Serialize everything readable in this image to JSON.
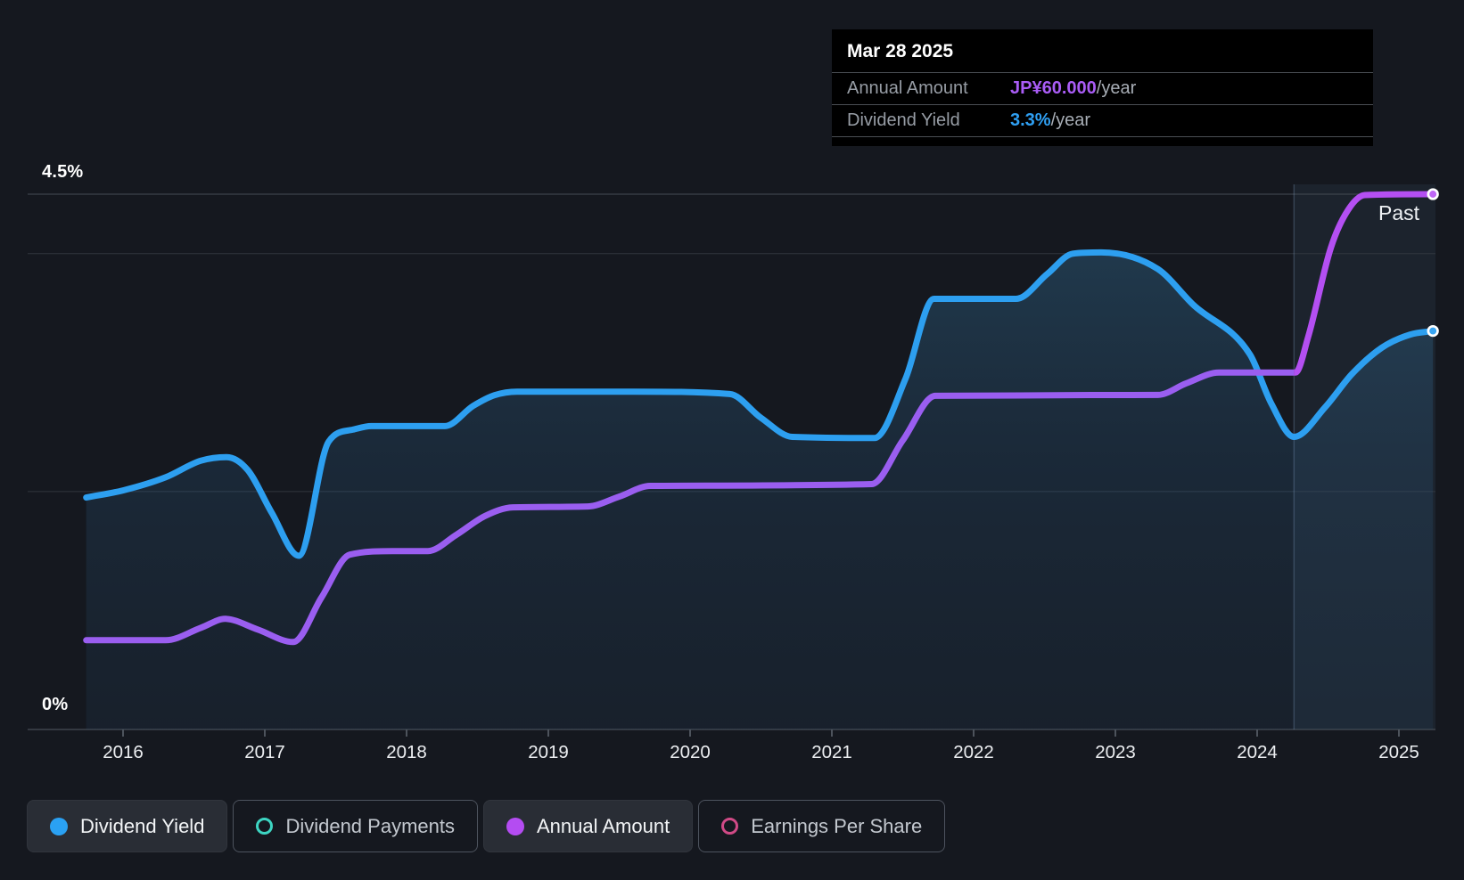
{
  "tooltip": {
    "date": "Mar 28 2025",
    "rows": [
      {
        "label": "Annual Amount",
        "value": "JP¥60.000",
        "suffix": "/year",
        "color": "#a95cf5"
      },
      {
        "label": "Dividend Yield",
        "value": "3.3%",
        "suffix": "/year",
        "color": "#2f9ff2"
      }
    ]
  },
  "legend": {
    "items": [
      {
        "label": "Dividend Yield",
        "color": "#2aa1f3",
        "style": "filled",
        "active": true
      },
      {
        "label": "Dividend Payments",
        "color": "#3dd5c2",
        "style": "outline",
        "active": false
      },
      {
        "label": "Annual Amount",
        "color": "#b44cf2",
        "style": "filled",
        "active": true
      },
      {
        "label": "Earnings Per Share",
        "color": "#d04a86",
        "style": "outline",
        "active": false
      }
    ]
  },
  "chart_data": {
    "type": "line",
    "annotations": {
      "past": "Past"
    },
    "x_axis": {
      "ticks": [
        2016,
        2017,
        2018,
        2019,
        2020,
        2021,
        2022,
        2023,
        2024,
        2025
      ]
    },
    "y_axis": {
      "unit": "%",
      "min": 0,
      "max": 4.5,
      "top_label": "4.5%",
      "bottom_label": "0%",
      "gridlines_pct": [
        4.5,
        4.0,
        2.0
      ]
    },
    "x_range": [
      2015.74,
      2025.24
    ],
    "past_divider_year": 2024.26,
    "colors": {
      "yield_line": "#2d9ff0",
      "amount_line": "#9a5ef0",
      "amount_line_past": "#b44ff2",
      "yield_dot": "#38a5f3",
      "amount_dot": "#bf66f6"
    },
    "series": [
      {
        "name": "Dividend Yield",
        "unit": "%",
        "points": [
          [
            2015.74,
            1.95
          ],
          [
            2016.0,
            2.01
          ],
          [
            2016.3,
            2.12
          ],
          [
            2016.55,
            2.26
          ],
          [
            2016.73,
            2.29
          ],
          [
            2016.88,
            2.18
          ],
          [
            2017.05,
            1.82
          ],
          [
            2017.24,
            1.46
          ],
          [
            2017.45,
            2.42
          ],
          [
            2017.62,
            2.52
          ],
          [
            2017.75,
            2.55
          ],
          [
            2018.27,
            2.55
          ],
          [
            2018.47,
            2.72
          ],
          [
            2018.62,
            2.81
          ],
          [
            2018.78,
            2.84
          ],
          [
            2019.6,
            2.84
          ],
          [
            2020.28,
            2.82
          ],
          [
            2020.5,
            2.62
          ],
          [
            2020.72,
            2.46
          ],
          [
            2021.3,
            2.45
          ],
          [
            2021.52,
            2.95
          ],
          [
            2021.72,
            3.62
          ],
          [
            2022.3,
            3.62
          ],
          [
            2022.52,
            3.83
          ],
          [
            2022.7,
            4.0
          ],
          [
            2022.9,
            4.01
          ],
          [
            2023.3,
            3.87
          ],
          [
            2023.55,
            3.57
          ],
          [
            2023.95,
            3.15
          ],
          [
            2024.1,
            2.74
          ],
          [
            2024.26,
            2.46
          ],
          [
            2024.48,
            2.71
          ],
          [
            2024.67,
            2.99
          ],
          [
            2024.88,
            3.21
          ],
          [
            2025.08,
            3.32
          ],
          [
            2025.24,
            3.35
          ]
        ]
      },
      {
        "name": "Annual Amount",
        "unit": "JP¥",
        "points": [
          [
            2015.74,
            10.0
          ],
          [
            2016.3,
            10.0
          ],
          [
            2016.55,
            11.4
          ],
          [
            2016.72,
            12.4
          ],
          [
            2016.95,
            11.2
          ],
          [
            2017.2,
            9.8
          ],
          [
            2017.4,
            14.8
          ],
          [
            2017.6,
            19.6
          ],
          [
            2017.9,
            20.0
          ],
          [
            2018.15,
            20.0
          ],
          [
            2018.35,
            21.8
          ],
          [
            2018.55,
            23.9
          ],
          [
            2018.75,
            24.9
          ],
          [
            2019.28,
            25.0
          ],
          [
            2019.5,
            26.1
          ],
          [
            2019.72,
            27.3
          ],
          [
            2021.28,
            27.5
          ],
          [
            2021.5,
            32.4
          ],
          [
            2021.73,
            37.4
          ],
          [
            2023.3,
            37.5
          ],
          [
            2023.5,
            38.8
          ],
          [
            2023.73,
            40.0
          ],
          [
            2024.27,
            40.0
          ],
          [
            2024.36,
            44.0
          ],
          [
            2024.52,
            54.0
          ],
          [
            2024.64,
            58.2
          ],
          [
            2024.76,
            59.9
          ],
          [
            2025.24,
            60.0
          ]
        ]
      }
    ]
  }
}
